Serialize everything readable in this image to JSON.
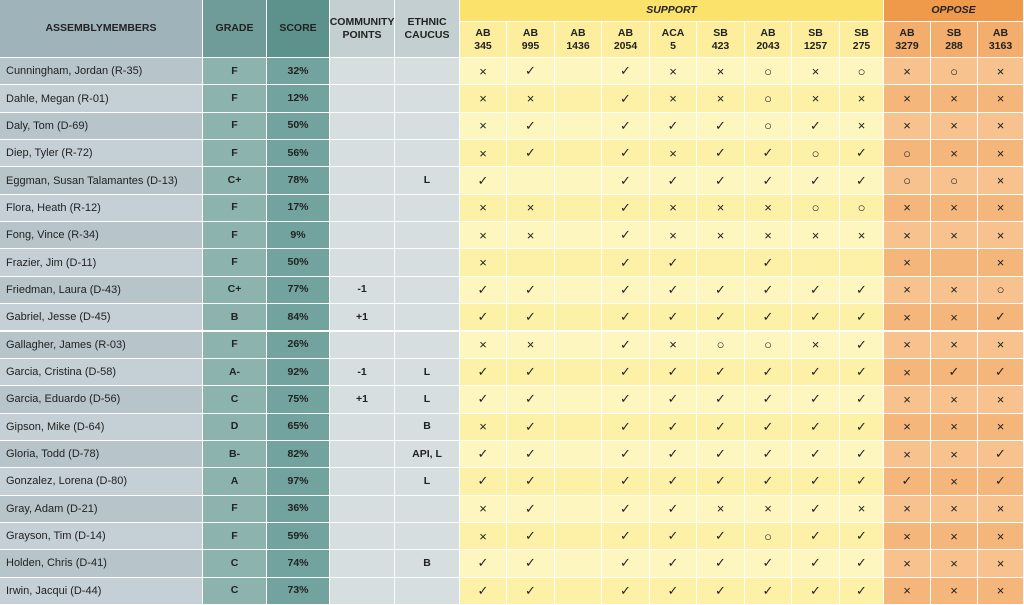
{
  "header": {
    "name": "ASSEMBLYMEMBERS",
    "grade": "GRADE",
    "score": "SCORE",
    "community": "COMMUNITY POINTS",
    "ethnic": "ETHNIC CAUCUS",
    "support": "SUPPORT",
    "oppose": "OPPOSE",
    "support_bills": [
      [
        "AB",
        "345"
      ],
      [
        "AB",
        "995"
      ],
      [
        "AB",
        "1436"
      ],
      [
        "AB",
        "2054"
      ],
      [
        "ACA",
        "5"
      ],
      [
        "SB",
        "423"
      ],
      [
        "AB",
        "2043"
      ],
      [
        "SB",
        "1257"
      ],
      [
        "SB",
        "275"
      ]
    ],
    "oppose_bills": [
      [
        "AB",
        "3279"
      ],
      [
        "SB",
        "288"
      ],
      [
        "AB",
        "3163"
      ]
    ]
  },
  "rows": [
    {
      "name": "Cunningham, Jordan (R-35)",
      "grade": "F",
      "score": "32%",
      "community": null,
      "ethnic": null,
      "support": [
        "×",
        "✓",
        null,
        "✓",
        "×",
        "×",
        "○",
        "×",
        "○"
      ],
      "oppose": [
        "×",
        "○",
        "×"
      ]
    },
    {
      "name": "Dahle, Megan (R-01)",
      "grade": "F",
      "score": "12%",
      "community": null,
      "ethnic": null,
      "support": [
        "×",
        "×",
        null,
        "✓",
        "×",
        "×",
        "○",
        "×",
        "×"
      ],
      "oppose": [
        "×",
        "×",
        "×"
      ]
    },
    {
      "name": "Daly, Tom (D-69)",
      "grade": "F",
      "score": "50%",
      "community": null,
      "ethnic": null,
      "support": [
        "×",
        "✓",
        null,
        "✓",
        "✓",
        "✓",
        "○",
        "✓",
        "×"
      ],
      "oppose": [
        "×",
        "×",
        "×"
      ]
    },
    {
      "name": "Diep, Tyler (R-72)",
      "grade": "F",
      "score": "56%",
      "community": null,
      "ethnic": null,
      "support": [
        "×",
        "✓",
        null,
        "✓",
        "×",
        "✓",
        "✓",
        "○",
        "✓"
      ],
      "oppose": [
        "○",
        "×",
        "×"
      ]
    },
    {
      "name": "Eggman, Susan Talamantes (D-13)",
      "grade": "C+",
      "score": "78%",
      "community": null,
      "ethnic": "L",
      "support": [
        "✓",
        null,
        null,
        "✓",
        "✓",
        "✓",
        "✓",
        "✓",
        "✓"
      ],
      "oppose": [
        "○",
        "○",
        "×"
      ]
    },
    {
      "name": "Flora, Heath (R-12)",
      "grade": "F",
      "score": "17%",
      "community": null,
      "ethnic": null,
      "support": [
        "×",
        "×",
        null,
        "✓",
        "×",
        "×",
        "×",
        "○",
        "○"
      ],
      "oppose": [
        "×",
        "×",
        "×"
      ]
    },
    {
      "name": "Fong, Vince (R-34)",
      "grade": "F",
      "score": "9%",
      "community": null,
      "ethnic": null,
      "support": [
        "×",
        "×",
        null,
        "✓",
        "×",
        "×",
        "×",
        "×",
        "×"
      ],
      "oppose": [
        "×",
        "×",
        "×"
      ]
    },
    {
      "name": "Frazier, Jim (D-11)",
      "grade": "F",
      "score": "50%",
      "community": null,
      "ethnic": null,
      "support": [
        "×",
        null,
        null,
        "✓",
        "✓",
        null,
        "✓",
        null,
        null
      ],
      "oppose": [
        "×",
        null,
        "×"
      ]
    },
    {
      "name": "Friedman, Laura (D-43)",
      "grade": "C+",
      "score": "77%",
      "community": "-1",
      "ethnic": null,
      "support": [
        "✓",
        "✓",
        null,
        "✓",
        "✓",
        "✓",
        "✓",
        "✓",
        "✓"
      ],
      "oppose": [
        "×",
        "×",
        "○"
      ]
    },
    {
      "name": "Gabriel, Jesse (D-45)",
      "grade": "B",
      "score": "84%",
      "community": "+1",
      "ethnic": null,
      "support": [
        "✓",
        "✓",
        null,
        "✓",
        "✓",
        "✓",
        "✓",
        "✓",
        "✓"
      ],
      "oppose": [
        "×",
        "×",
        "✓"
      ]
    },
    {
      "name": "Gallagher, James (R-03)",
      "grade": "F",
      "score": "26%",
      "community": null,
      "ethnic": null,
      "support": [
        "×",
        "×",
        null,
        "✓",
        "×",
        "○",
        "○",
        "×",
        "✓"
      ],
      "oppose": [
        "×",
        "×",
        "×"
      ]
    },
    {
      "name": "Garcia, Cristina (D-58)",
      "grade": "A-",
      "score": "92%",
      "community": "-1",
      "ethnic": "L",
      "support": [
        "✓",
        "✓",
        null,
        "✓",
        "✓",
        "✓",
        "✓",
        "✓",
        "✓"
      ],
      "oppose": [
        "×",
        "✓",
        "✓"
      ]
    },
    {
      "name": "Garcia, Eduardo (D-56)",
      "grade": "C",
      "score": "75%",
      "community": "+1",
      "ethnic": "L",
      "support": [
        "✓",
        "✓",
        null,
        "✓",
        "✓",
        "✓",
        "✓",
        "✓",
        "✓"
      ],
      "oppose": [
        "×",
        "×",
        "×"
      ]
    },
    {
      "name": "Gipson, Mike (D-64)",
      "grade": "D",
      "score": "65%",
      "community": null,
      "ethnic": "B",
      "support": [
        "×",
        "✓",
        null,
        "✓",
        "✓",
        "✓",
        "✓",
        "✓",
        "✓"
      ],
      "oppose": [
        "×",
        "×",
        "×"
      ]
    },
    {
      "name": "Gloria, Todd (D-78)",
      "grade": "B-",
      "score": "82%",
      "community": null,
      "ethnic": "API, L",
      "support": [
        "✓",
        "✓",
        null,
        "✓",
        "✓",
        "✓",
        "✓",
        "✓",
        "✓"
      ],
      "oppose": [
        "×",
        "×",
        "✓"
      ]
    },
    {
      "name": "Gonzalez, Lorena (D-80)",
      "grade": "A",
      "score": "97%",
      "community": null,
      "ethnic": "L",
      "support": [
        "✓",
        "✓",
        null,
        "✓",
        "✓",
        "✓",
        "✓",
        "✓",
        "✓"
      ],
      "oppose": [
        "✓",
        "×",
        "✓"
      ]
    },
    {
      "name": "Gray, Adam (D-21)",
      "grade": "F",
      "score": "36%",
      "community": null,
      "ethnic": null,
      "support": [
        "×",
        "✓",
        null,
        "✓",
        "✓",
        "×",
        "×",
        "✓",
        "×"
      ],
      "oppose": [
        "×",
        "×",
        "×"
      ]
    },
    {
      "name": "Grayson, Tim (D-14)",
      "grade": "F",
      "score": "59%",
      "community": null,
      "ethnic": null,
      "support": [
        "×",
        "✓",
        null,
        "✓",
        "✓",
        "✓",
        "○",
        "✓",
        "✓"
      ],
      "oppose": [
        "×",
        "×",
        "×"
      ]
    },
    {
      "name": "Holden, Chris (D-41)",
      "grade": "C",
      "score": "74%",
      "community": null,
      "ethnic": "B",
      "support": [
        "✓",
        "✓",
        null,
        "✓",
        "✓",
        "✓",
        "✓",
        "✓",
        "✓"
      ],
      "oppose": [
        "×",
        "×",
        "×"
      ]
    },
    {
      "name": "Irwin, Jacqui (D-44)",
      "grade": "C",
      "score": "73%",
      "community": null,
      "ethnic": null,
      "support": [
        "✓",
        "✓",
        null,
        "✓",
        "✓",
        "✓",
        "✓",
        "✓",
        "✓"
      ],
      "oppose": [
        "×",
        "×",
        "×"
      ]
    }
  ]
}
